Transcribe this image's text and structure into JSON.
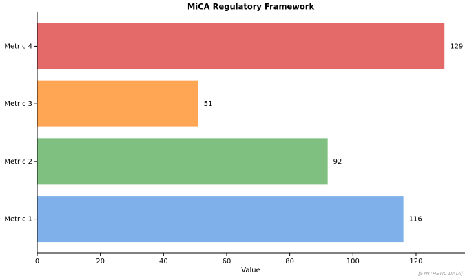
{
  "chart_data": {
    "type": "barh",
    "title": "MiCA Regulatory Framework",
    "categories": [
      "Metric 1",
      "Metric 2",
      "Metric 3",
      "Metric 4"
    ],
    "values": [
      116,
      92,
      51,
      129
    ],
    "colors": [
      "#7fb0ea",
      "#7fbf7f",
      "#ffa654",
      "#e46a6a"
    ],
    "xlabel": "Value",
    "xlim": [
      0,
      135.5
    ],
    "xticks": [
      0,
      20,
      40,
      60,
      80,
      100,
      120
    ],
    "note": "[SYNTHETIC DATA]"
  }
}
